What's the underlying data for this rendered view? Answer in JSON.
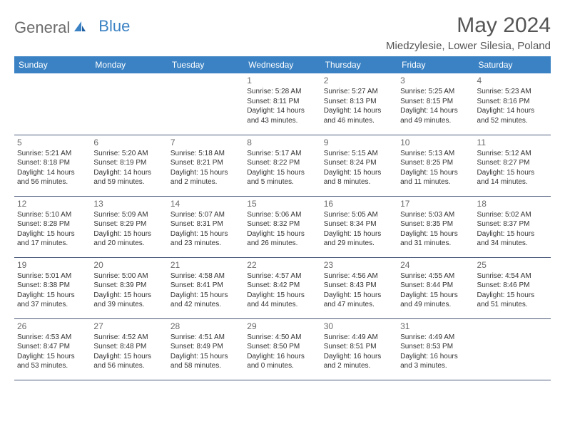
{
  "logo": {
    "general": "General",
    "blue": "Blue"
  },
  "title": "May 2024",
  "location": "Miedzylesie, Lower Silesia, Poland",
  "colors": {
    "header_bg": "#3b82c4",
    "header_text": "#ffffff",
    "border": "#4a5a7a",
    "text": "#333333",
    "muted": "#6a6a6a",
    "logo_gray": "#6b6b6b",
    "logo_blue": "#3b82c4",
    "page_bg": "#ffffff"
  },
  "weekdays": [
    "Sunday",
    "Monday",
    "Tuesday",
    "Wednesday",
    "Thursday",
    "Friday",
    "Saturday"
  ],
  "weeks": [
    [
      null,
      null,
      null,
      {
        "n": "1",
        "sr": "5:28 AM",
        "ss": "8:11 PM",
        "dl": "14 hours and 43 minutes."
      },
      {
        "n": "2",
        "sr": "5:27 AM",
        "ss": "8:13 PM",
        "dl": "14 hours and 46 minutes."
      },
      {
        "n": "3",
        "sr": "5:25 AM",
        "ss": "8:15 PM",
        "dl": "14 hours and 49 minutes."
      },
      {
        "n": "4",
        "sr": "5:23 AM",
        "ss": "8:16 PM",
        "dl": "14 hours and 52 minutes."
      }
    ],
    [
      {
        "n": "5",
        "sr": "5:21 AM",
        "ss": "8:18 PM",
        "dl": "14 hours and 56 minutes."
      },
      {
        "n": "6",
        "sr": "5:20 AM",
        "ss": "8:19 PM",
        "dl": "14 hours and 59 minutes."
      },
      {
        "n": "7",
        "sr": "5:18 AM",
        "ss": "8:21 PM",
        "dl": "15 hours and 2 minutes."
      },
      {
        "n": "8",
        "sr": "5:17 AM",
        "ss": "8:22 PM",
        "dl": "15 hours and 5 minutes."
      },
      {
        "n": "9",
        "sr": "5:15 AM",
        "ss": "8:24 PM",
        "dl": "15 hours and 8 minutes."
      },
      {
        "n": "10",
        "sr": "5:13 AM",
        "ss": "8:25 PM",
        "dl": "15 hours and 11 minutes."
      },
      {
        "n": "11",
        "sr": "5:12 AM",
        "ss": "8:27 PM",
        "dl": "15 hours and 14 minutes."
      }
    ],
    [
      {
        "n": "12",
        "sr": "5:10 AM",
        "ss": "8:28 PM",
        "dl": "15 hours and 17 minutes."
      },
      {
        "n": "13",
        "sr": "5:09 AM",
        "ss": "8:29 PM",
        "dl": "15 hours and 20 minutes."
      },
      {
        "n": "14",
        "sr": "5:07 AM",
        "ss": "8:31 PM",
        "dl": "15 hours and 23 minutes."
      },
      {
        "n": "15",
        "sr": "5:06 AM",
        "ss": "8:32 PM",
        "dl": "15 hours and 26 minutes."
      },
      {
        "n": "16",
        "sr": "5:05 AM",
        "ss": "8:34 PM",
        "dl": "15 hours and 29 minutes."
      },
      {
        "n": "17",
        "sr": "5:03 AM",
        "ss": "8:35 PM",
        "dl": "15 hours and 31 minutes."
      },
      {
        "n": "18",
        "sr": "5:02 AM",
        "ss": "8:37 PM",
        "dl": "15 hours and 34 minutes."
      }
    ],
    [
      {
        "n": "19",
        "sr": "5:01 AM",
        "ss": "8:38 PM",
        "dl": "15 hours and 37 minutes."
      },
      {
        "n": "20",
        "sr": "5:00 AM",
        "ss": "8:39 PM",
        "dl": "15 hours and 39 minutes."
      },
      {
        "n": "21",
        "sr": "4:58 AM",
        "ss": "8:41 PM",
        "dl": "15 hours and 42 minutes."
      },
      {
        "n": "22",
        "sr": "4:57 AM",
        "ss": "8:42 PM",
        "dl": "15 hours and 44 minutes."
      },
      {
        "n": "23",
        "sr": "4:56 AM",
        "ss": "8:43 PM",
        "dl": "15 hours and 47 minutes."
      },
      {
        "n": "24",
        "sr": "4:55 AM",
        "ss": "8:44 PM",
        "dl": "15 hours and 49 minutes."
      },
      {
        "n": "25",
        "sr": "4:54 AM",
        "ss": "8:46 PM",
        "dl": "15 hours and 51 minutes."
      }
    ],
    [
      {
        "n": "26",
        "sr": "4:53 AM",
        "ss": "8:47 PM",
        "dl": "15 hours and 53 minutes."
      },
      {
        "n": "27",
        "sr": "4:52 AM",
        "ss": "8:48 PM",
        "dl": "15 hours and 56 minutes."
      },
      {
        "n": "28",
        "sr": "4:51 AM",
        "ss": "8:49 PM",
        "dl": "15 hours and 58 minutes."
      },
      {
        "n": "29",
        "sr": "4:50 AM",
        "ss": "8:50 PM",
        "dl": "16 hours and 0 minutes."
      },
      {
        "n": "30",
        "sr": "4:49 AM",
        "ss": "8:51 PM",
        "dl": "16 hours and 2 minutes."
      },
      {
        "n": "31",
        "sr": "4:49 AM",
        "ss": "8:53 PM",
        "dl": "16 hours and 3 minutes."
      },
      null
    ]
  ],
  "labels": {
    "sunrise": "Sunrise: ",
    "sunset": "Sunset: ",
    "daylight": "Daylight: "
  }
}
